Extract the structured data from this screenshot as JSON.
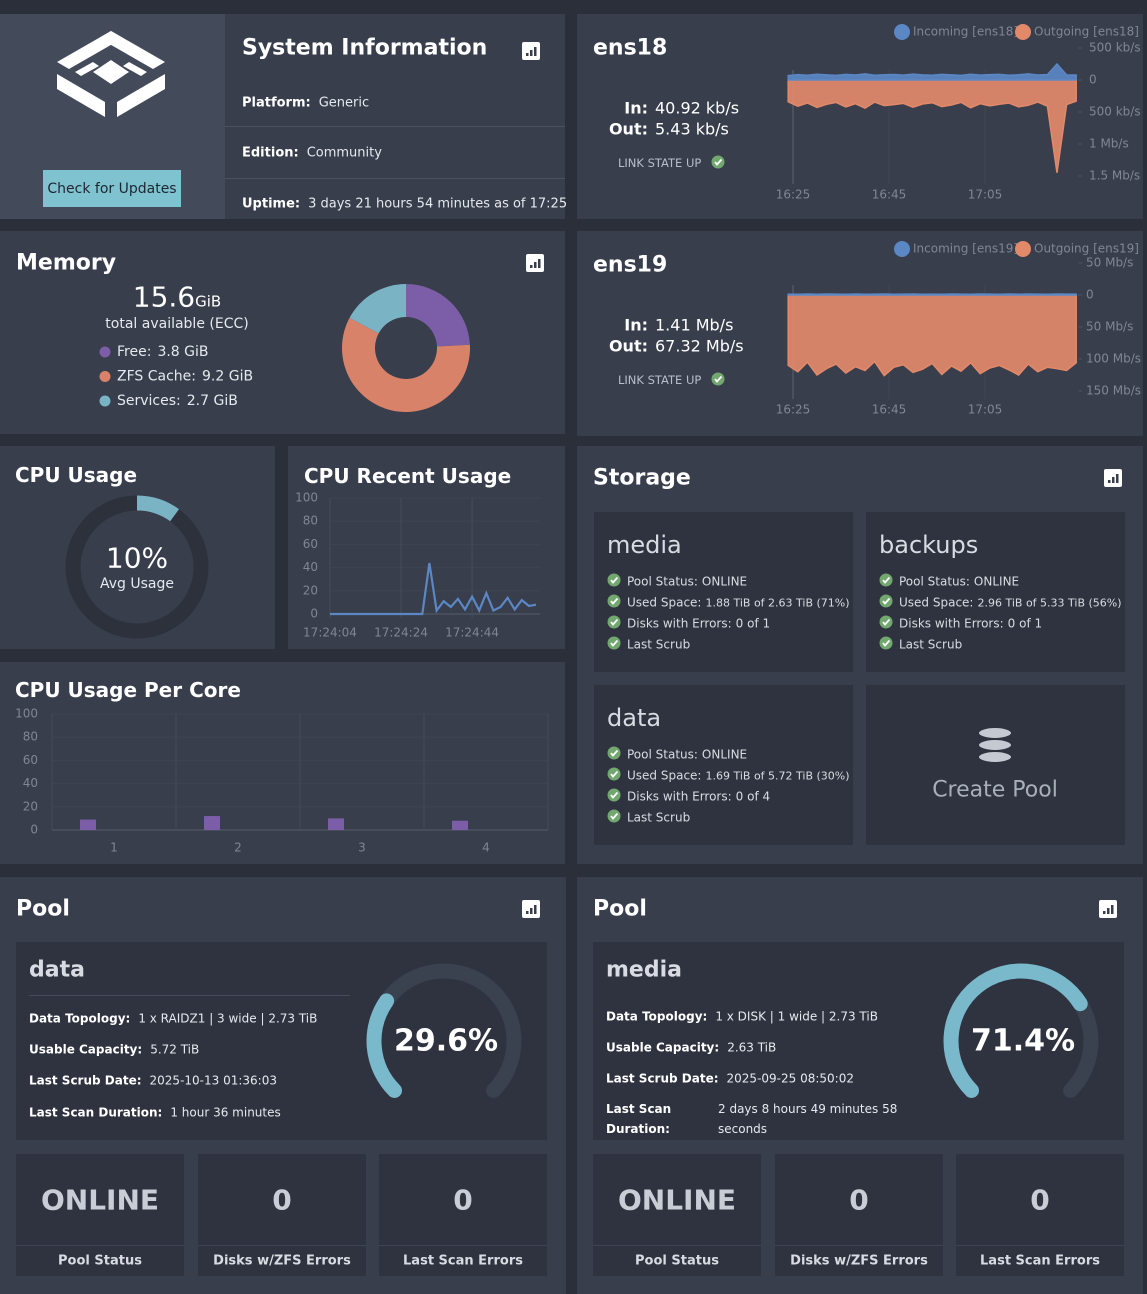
{
  "system_info": {
    "title": "System Information",
    "button": "Check for Updates",
    "rows": [
      {
        "label": "Platform:",
        "value": "Generic"
      },
      {
        "label": "Edition:",
        "value": "Community"
      },
      {
        "label": "Uptime:",
        "value": "3 days 21 hours 54 minutes as of 17:25"
      }
    ]
  },
  "interfaces": [
    {
      "name": "ens18",
      "in_label": "In:",
      "in_value": "40.92 kb/s",
      "out_label": "Out:",
      "out_value": "5.43 kb/s",
      "link_state": "LINK STATE UP",
      "chart": {
        "type": "area",
        "x": [
          "16:24",
          "16:26",
          "16:28",
          "16:30",
          "16:32",
          "16:34",
          "16:36",
          "16:38",
          "16:40",
          "16:42",
          "16:44",
          "16:46",
          "16:48",
          "16:50",
          "16:52",
          "16:54",
          "16:56",
          "16:58",
          "17:00",
          "17:02",
          "17:04",
          "17:06",
          "17:08",
          "17:10",
          "17:12",
          "17:14",
          "17:16",
          "17:18",
          "17:20",
          "17:22",
          "17:24"
        ],
        "series": [
          {
            "name": "Incoming [ens18]",
            "color": "#5b87c5",
            "values": [
              70,
              85,
              75,
              90,
              80,
              72,
              88,
              78,
              95,
              74,
              82,
              86,
              76,
              92,
              80,
              74,
              88,
              79,
              72,
              90,
              77,
              84,
              88,
              75,
              82,
              96,
              78,
              85,
              250,
              80,
              76
            ]
          },
          {
            "name": "Outgoing [ens18]",
            "color": "#e2896a",
            "values": [
              -340,
              -410,
              -360,
              -430,
              -380,
              -350,
              -420,
              -370,
              -440,
              -345,
              -400,
              -385,
              -365,
              -425,
              -375,
              -355,
              -415,
              -390,
              -350,
              -435,
              -370,
              -405,
              -380,
              -360,
              -420,
              -395,
              -345,
              -410,
              -1450,
              -385,
              -330
            ]
          }
        ],
        "ylim": [
          -1500,
          500
        ],
        "yticks": [
          {
            "value": 500,
            "label": "500 kb/s"
          },
          0,
          {
            "value": -500,
            "label": "500 kb/s"
          },
          {
            "value": -1000,
            "label": "1 Mb/s"
          },
          {
            "value": -1500,
            "label": "1.5 Mb/s"
          }
        ],
        "xlim": [
          "16:24",
          "17:24"
        ],
        "xticks": [
          "16:25",
          "16:45",
          "17:05"
        ]
      }
    },
    {
      "name": "ens19",
      "in_label": "In:",
      "in_value": "1.41 Mb/s",
      "out_label": "Out:",
      "out_value": "67.32 Mb/s",
      "link_state": "LINK STATE UP",
      "chart": {
        "type": "area",
        "x": [
          "16:24",
          "16:26",
          "16:28",
          "16:30",
          "16:32",
          "16:34",
          "16:36",
          "16:38",
          "16:40",
          "16:42",
          "16:44",
          "16:46",
          "16:48",
          "16:50",
          "16:52",
          "16:54",
          "16:56",
          "16:58",
          "17:00",
          "17:02",
          "17:04",
          "17:06",
          "17:08",
          "17:10",
          "17:12",
          "17:14",
          "17:16",
          "17:18",
          "17:20",
          "17:22",
          "17:24"
        ],
        "series": [
          {
            "name": "Incoming [ens19]",
            "color": "#5b87c5",
            "values": [
              1.4,
              1.2,
              1.5,
              1.3,
              1.6,
              1.4,
              1.2,
              1.5,
              1.3,
              1.4,
              1.6,
              1.2,
              1.4,
              1.5,
              1.3,
              1.4,
              1.2,
              1.6,
              1.4,
              1.3,
              1.5,
              1.4,
              1.2,
              1.5,
              1.3,
              1.6,
              1.4,
              1.3,
              1.5,
              1.4,
              1.4
            ]
          },
          {
            "name": "Outgoing [ens19]",
            "color": "#e2896a",
            "values": [
              -110,
              -120,
              -105,
              -125,
              -115,
              -108,
              -122,
              -112,
              -118,
              -104,
              -126,
              -113,
              -109,
              -121,
              -116,
              -107,
              -124,
              -111,
              -119,
              -106,
              -123,
              -114,
              -110,
              -117,
              -125,
              -108,
              -120,
              -113,
              -115,
              -118,
              -106
            ]
          }
        ],
        "ylim": [
          -150,
          50
        ],
        "yticks": [
          {
            "value": 50,
            "label": "50 Mb/s"
          },
          0,
          {
            "value": -50,
            "label": "50 Mb/s"
          },
          {
            "value": -100,
            "label": "100 Mb/s"
          },
          {
            "value": -150,
            "label": "150 Mb/s"
          }
        ],
        "xlim": [
          "16:24",
          "17:24"
        ],
        "xticks": [
          "16:25",
          "16:45",
          "17:05"
        ]
      }
    }
  ],
  "memory": {
    "title": "Memory",
    "total": 15.6,
    "total_unit": "GiB",
    "caption": "total available (ECC)",
    "chart": {
      "type": "donut",
      "categories": [
        "Free:",
        "ZFS Cache:",
        "Services:"
      ],
      "values": [
        3.8,
        9.2,
        2.7
      ],
      "value_labels": [
        "3.8 GiB",
        "9.2 GiB",
        "2.7 GiB"
      ],
      "colors": [
        "#7b5ea7",
        "#d9826a",
        "#7ab3c4"
      ]
    }
  },
  "cpu_usage": {
    "title": "CPU Usage",
    "caption": "Avg Usage",
    "chart": {
      "type": "ring",
      "value": 10,
      "value_label": "10%",
      "ylim": [
        0,
        100
      ],
      "color": "#7ab3c4"
    }
  },
  "cpu_recent": {
    "title": "CPU Recent Usage",
    "chart": {
      "type": "line",
      "color": "#5b87c5",
      "x": [
        "17:24:04",
        "17:24:06",
        "17:24:08",
        "17:24:10",
        "17:24:12",
        "17:24:14",
        "17:24:16",
        "17:24:18",
        "17:24:20",
        "17:24:22",
        "17:24:24",
        "17:24:26",
        "17:24:28",
        "17:24:30",
        "17:24:32",
        "17:24:34",
        "17:24:36",
        "17:24:38",
        "17:24:40",
        "17:24:42",
        "17:24:44",
        "17:24:46",
        "17:24:48",
        "17:24:50",
        "17:24:52",
        "17:24:54",
        "17:24:56",
        "17:24:58",
        "17:25:00",
        "17:25:02"
      ],
      "values": [
        0,
        0,
        0,
        0,
        0,
        0,
        0,
        0,
        0,
        0,
        0,
        0,
        0,
        0,
        44,
        3,
        11,
        6,
        13,
        4,
        15,
        3,
        18,
        3,
        6,
        14,
        4,
        12,
        7,
        8
      ],
      "ylim": [
        0,
        100
      ],
      "yticks": [
        0,
        20,
        40,
        60,
        80,
        100
      ],
      "xlim": [
        "17:24:04",
        "17:25:02"
      ],
      "xticks": [
        "17:24:04",
        "17:24:24",
        "17:24:44"
      ]
    }
  },
  "cpu_per_core": {
    "title": "CPU Usage Per Core",
    "chart": {
      "type": "bar",
      "categories": [
        "1",
        "2",
        "3",
        "4"
      ],
      "values": [
        9,
        12,
        10,
        8
      ],
      "color": "#7b5ea7",
      "ylim": [
        0,
        100
      ],
      "yticks": [
        0,
        20,
        40,
        60,
        80,
        100
      ]
    }
  },
  "storage": {
    "title": "Storage",
    "create_pool": "Create Pool",
    "pools": [
      {
        "name": "media",
        "items": [
          {
            "label": "Pool Status:",
            "value": "ONLINE"
          },
          {
            "label": "Used Space:",
            "value": "1.88 TiB of 2.63 TiB (71%)"
          },
          {
            "label": "Disks with Errors:",
            "value": "0 of 1"
          },
          {
            "label": "Last Scrub"
          }
        ]
      },
      {
        "name": "backups",
        "items": [
          {
            "label": "Pool Status:",
            "value": "ONLINE"
          },
          {
            "label": "Used Space:",
            "value": "2.96 TiB of 5.33 TiB (56%)"
          },
          {
            "label": "Disks with Errors:",
            "value": "0 of 1"
          },
          {
            "label": "Last Scrub"
          }
        ]
      },
      {
        "name": "data",
        "items": [
          {
            "label": "Pool Status:",
            "value": "ONLINE"
          },
          {
            "label": "Used Space:",
            "value": "1.69 TiB of 5.72 TiB (30%)"
          },
          {
            "label": "Disks with Errors:",
            "value": "0 of 4"
          },
          {
            "label": "Last Scrub"
          }
        ]
      }
    ]
  },
  "pool_widgets": [
    {
      "title": "Pool",
      "name": "data",
      "details": [
        {
          "label": "Data Topology:",
          "value": "1 x RAIDZ1 | 3 wide | 2.73 TiB"
        },
        {
          "label": "Usable Capacity:",
          "value": "5.72 TiB"
        },
        {
          "label": "Last Scrub Date:",
          "value": "2025-10-13 01:36:03"
        },
        {
          "label": "Last Scan Duration:",
          "value": "1 hour 36 minutes"
        }
      ],
      "gauge": {
        "type": "gauge",
        "value": 29.6,
        "value_label": "29.6%",
        "ylim": [
          0,
          100
        ],
        "color": "#7ab8cb"
      },
      "tiles": [
        {
          "value": "ONLINE",
          "caption": "Pool Status"
        },
        {
          "value": 0,
          "caption": "Disks w/ZFS Errors"
        },
        {
          "value": 0,
          "caption": "Last Scan Errors"
        }
      ]
    },
    {
      "title": "Pool",
      "name": "media",
      "details": [
        {
          "label": "Data Topology:",
          "value": "1 x DISK | 1 wide | 2.73 TiB"
        },
        {
          "label": "Usable Capacity:",
          "value": "2.63 TiB"
        },
        {
          "label": "Last Scrub Date:",
          "value": "2025-09-25 08:50:02"
        },
        {
          "label": "Last Scan Duration:",
          "value": "2 days 8 hours 49 minutes 58 seconds"
        }
      ],
      "gauge": {
        "type": "gauge",
        "value": 71.4,
        "value_label": "71.4%",
        "ylim": [
          0,
          100
        ],
        "color": "#7ab8cb"
      },
      "tiles": [
        {
          "value": "ONLINE",
          "caption": "Pool Status"
        },
        {
          "value": 0,
          "caption": "Disks w/ZFS Errors"
        },
        {
          "value": 0,
          "caption": "Last Scan Errors"
        }
      ]
    }
  ]
}
